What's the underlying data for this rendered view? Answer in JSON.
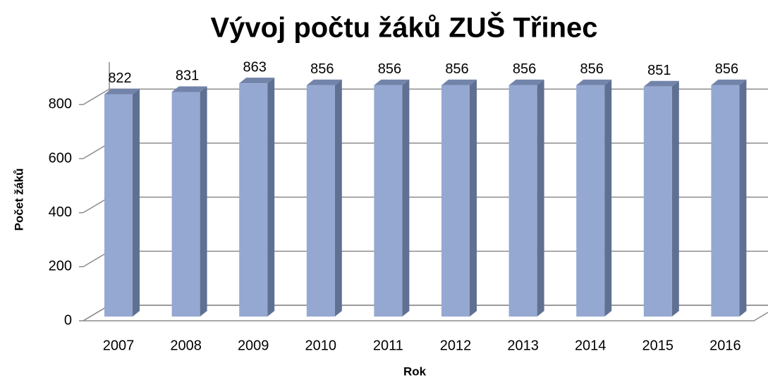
{
  "chart_data": {
    "type": "bar3d",
    "title": "Vývoj počtu žáků ZUŠ Třinec",
    "x_label": "Rok",
    "y_label": "Počet žáků",
    "categories": [
      "2007",
      "2008",
      "2009",
      "2010",
      "2011",
      "2012",
      "2013",
      "2014",
      "2015",
      "2016"
    ],
    "values": [
      822,
      831,
      863,
      856,
      856,
      856,
      856,
      856,
      851,
      856
    ],
    "color": "#95a8d1",
    "ylim": [
      0,
      900
    ],
    "yticks": [
      0,
      200,
      400,
      600,
      800
    ],
    "grid": true
  }
}
